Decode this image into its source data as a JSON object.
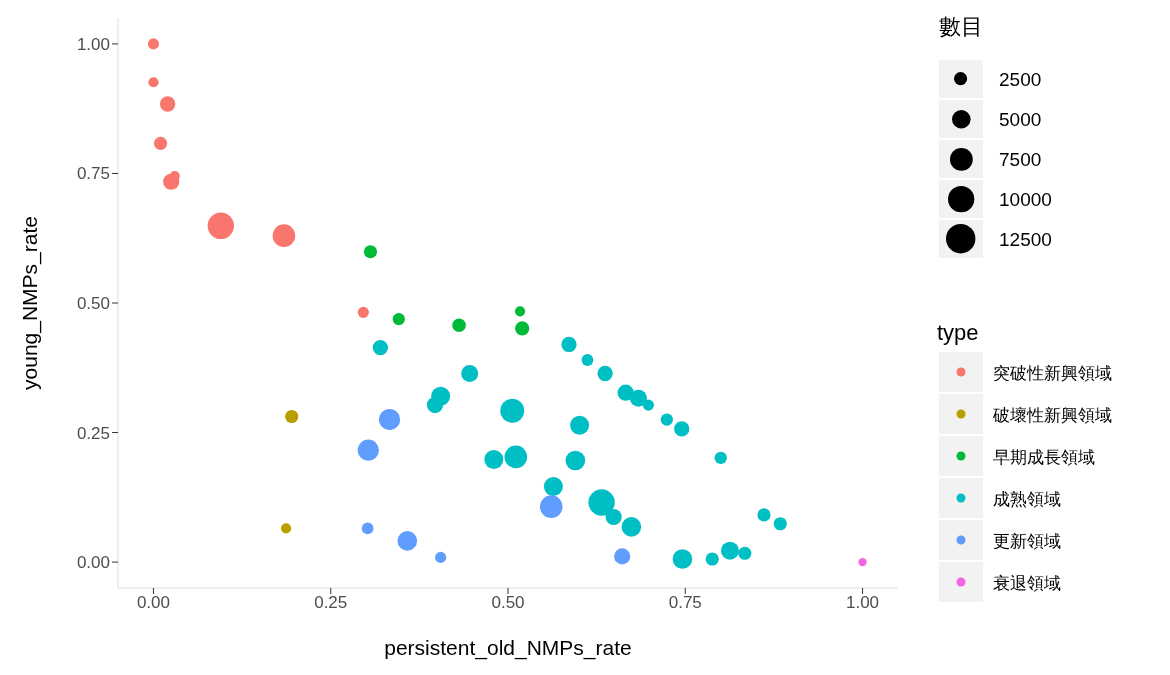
{
  "chart_data": {
    "type": "bubble",
    "xlabel": "persistent_old_NMPs_rate",
    "ylabel": "young_NMPs_rate",
    "legend_title": "type",
    "annotations": [
      "數目"
    ],
    "legend": "right",
    "grid": false,
    "xlim": [
      -0.05,
      1.05
    ],
    "ylim": [
      -0.05,
      1.05
    ],
    "xticks": [
      {
        "value": 0,
        "label": "0.00"
      },
      {
        "value": 0.25,
        "label": "0.25"
      },
      {
        "value": 0.5,
        "label": "0.50"
      },
      {
        "value": 0.75,
        "label": "0.75"
      },
      {
        "value": 1,
        "label": "1.00"
      }
    ],
    "yticks": [
      {
        "value": 0,
        "label": "0.00"
      },
      {
        "value": 0.25,
        "label": "0.25"
      },
      {
        "value": 0.5,
        "label": "0.50"
      },
      {
        "value": 0.75,
        "label": "0.75"
      },
      {
        "value": 1,
        "label": "1.00"
      }
    ],
    "size_legend": [
      2500,
      5000,
      7500,
      10000,
      12500
    ],
    "series": [
      {
        "name": "突破性新興領域",
        "color": "#f8766d",
        "x": [
          0,
          0,
          0.02,
          0.01,
          0.025,
          0.03,
          0.095,
          0.184,
          0.296
        ],
        "values": [
          1.0,
          0.926,
          0.884,
          0.808,
          0.734,
          0.745,
          0.649,
          0.63,
          0.482
        ],
        "sizes": [
          1800,
          1500,
          3400,
          2500,
          3800,
          1500,
          10100,
          7400,
          1800
        ]
      },
      {
        "name": "破壞性新興領域",
        "color": "#b79f00",
        "x": [
          0.195,
          0.187
        ],
        "values": [
          0.281,
          0.065
        ],
        "sizes": [
          2500,
          1500
        ]
      },
      {
        "name": "早期成長領域",
        "color": "#00ba38",
        "x": [
          0.306,
          0.346,
          0.431,
          0.517,
          0.52
        ],
        "values": [
          0.599,
          0.469,
          0.457,
          0.484,
          0.451
        ],
        "sizes": [
          2500,
          2200,
          2700,
          1500,
          2900
        ]
      },
      {
        "name": "成熟領域",
        "color": "#00bfc4",
        "x": [
          0.32,
          0.446,
          0.405,
          0.397,
          0.506,
          0.601,
          0.48,
          0.511,
          0.595,
          0.564,
          0.632,
          0.649,
          0.674,
          0.746,
          0.788,
          0.813,
          0.834,
          0.861,
          0.884,
          0.8,
          0.724,
          0.745,
          0.666,
          0.684,
          0.698,
          0.637,
          0.612,
          0.586
        ],
        "values": [
          0.414,
          0.364,
          0.32,
          0.303,
          0.292,
          0.264,
          0.198,
          0.203,
          0.196,
          0.146,
          0.115,
          0.087,
          0.068,
          0.006,
          0.006,
          0.022,
          0.017,
          0.091,
          0.074,
          0.201,
          0.275,
          0.257,
          0.327,
          0.316,
          0.303,
          0.364,
          0.39,
          0.42
        ],
        "sizes": [
          3400,
          4200,
          5200,
          3800,
          8300,
          5200,
          5200,
          7400,
          5600,
          5200,
          10100,
          3800,
          5600,
          5600,
          2500,
          4700,
          2500,
          2500,
          2500,
          2200,
          2200,
          3400,
          3800,
          4200,
          1800,
          3400,
          2000,
          3400
        ]
      },
      {
        "name": "更新領域",
        "color": "#619cff",
        "x": [
          0.303,
          0.333,
          0.302,
          0.358,
          0.405,
          0.561,
          0.661
        ],
        "values": [
          0.216,
          0.275,
          0.065,
          0.041,
          0.009,
          0.107,
          0.011
        ],
        "sizes": [
          6500,
          6500,
          2000,
          5600,
          1800,
          7400,
          3800
        ]
      },
      {
        "name": "衰退領域",
        "color": "#f564e3",
        "x": [
          1.0
        ],
        "values": [
          0.0
        ],
        "sizes": [
          1000
        ]
      }
    ]
  }
}
